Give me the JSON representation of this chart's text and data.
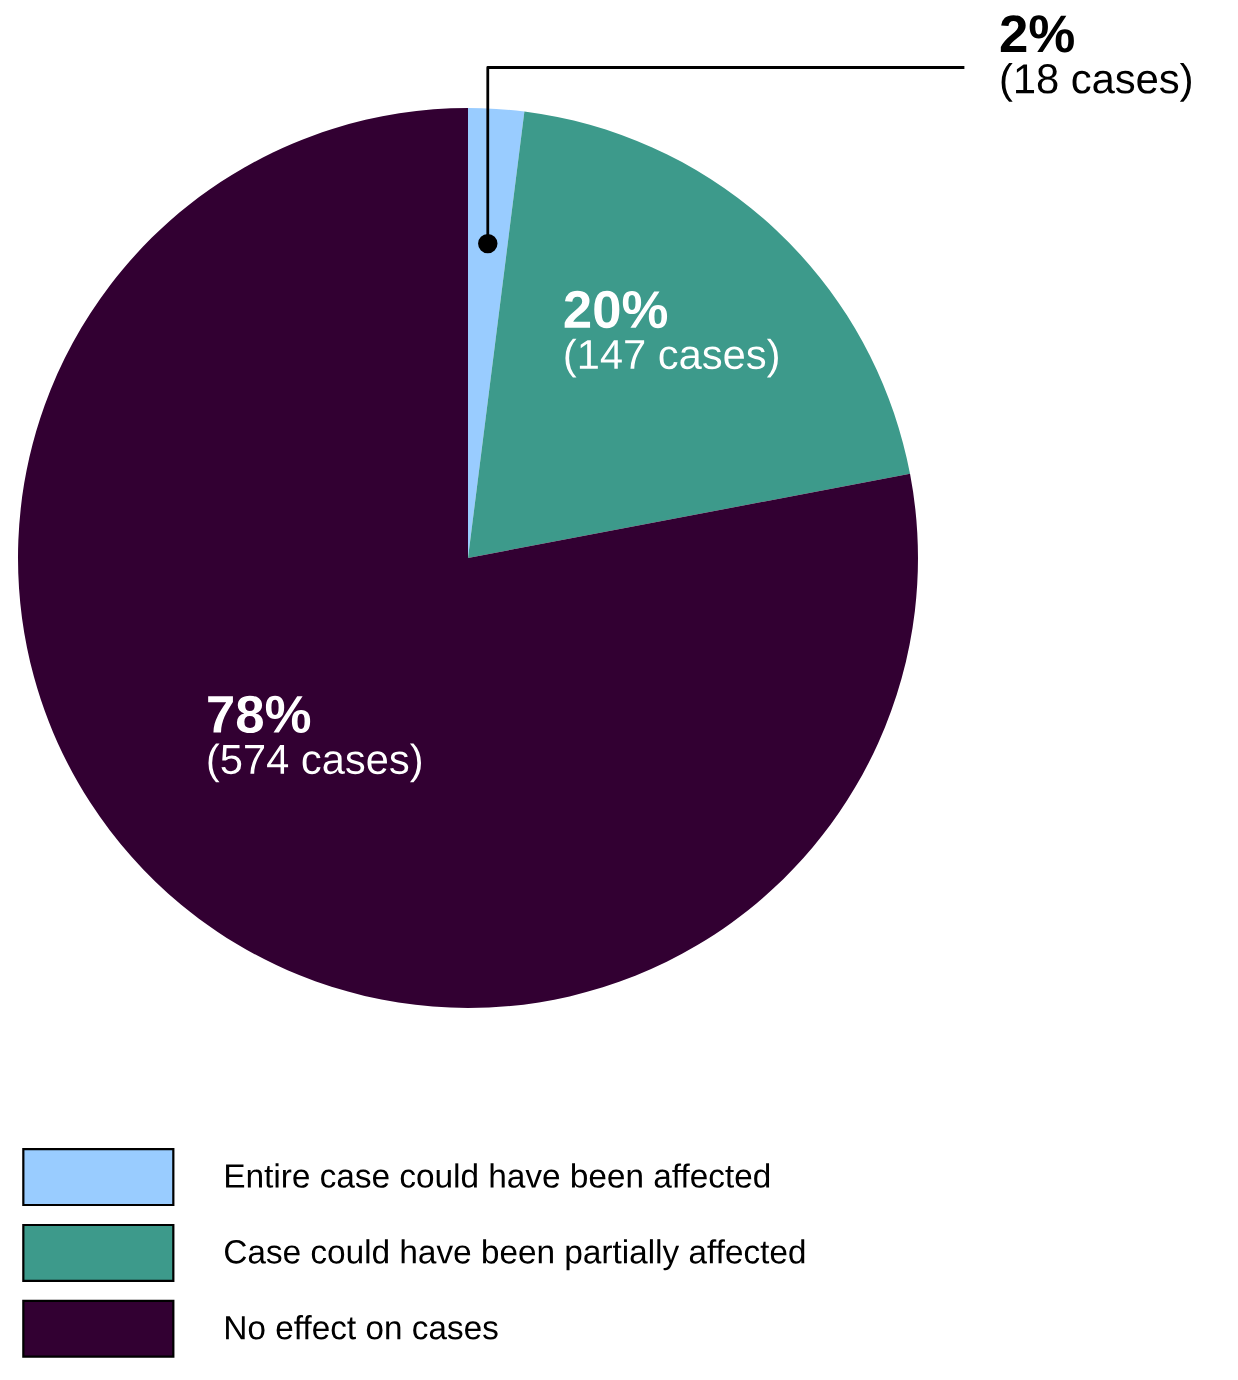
{
  "chart_data": {
    "type": "pie",
    "categories": [
      "Entire case could have been affected",
      "Case could have been partially affected",
      "No effect on cases"
    ],
    "values": [
      2,
      20,
      78
    ],
    "colors": [
      "#99ccff",
      "#3d9a8b",
      "#320032"
    ],
    "value_labels": [
      "2%",
      "20%",
      "78%"
    ],
    "annotations": [
      "(18 cases)",
      "(147 cases)",
      "(574 cases)"
    ],
    "legend": "bottom left"
  }
}
